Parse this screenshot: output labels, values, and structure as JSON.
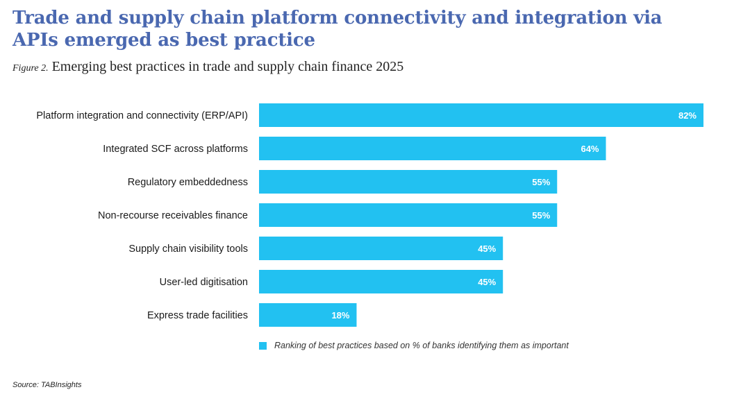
{
  "header": {
    "title": "Trade and supply chain platform connectivity and integration via APIs emerged as best practice",
    "figure_prefix": "Figure 2.",
    "figure_title": "Emerging best practices in trade and supply chain finance 2025"
  },
  "colors": {
    "title": "#4a68b0",
    "bar": "#22c1f1"
  },
  "chart_data": {
    "type": "bar",
    "orientation": "horizontal",
    "title": "Emerging best practices in trade and supply chain finance 2025",
    "categories": [
      "Platform integration and connectivity (ERP/API)",
      "Integrated SCF across platforms",
      "Regulatory embeddedness",
      "Non-recourse receivables finance",
      "Supply chain visibility tools",
      "User-led digitisation",
      "Express trade facilities"
    ],
    "series": [
      {
        "name": "Ranking of best practices based on % of banks identifying them as important",
        "values": [
          82,
          64,
          55,
          55,
          45,
          45,
          18
        ]
      }
    ],
    "value_labels": [
      "82%",
      "64%",
      "55%",
      "55%",
      "45%",
      "45%",
      "18%"
    ],
    "unit": "%",
    "xlabel": "",
    "ylabel": "",
    "xlim": [
      0,
      82
    ],
    "grid": false,
    "legend_position": "bottom"
  },
  "legend": {
    "label": "Ranking of best practices based on % of banks identifying them as important"
  },
  "footer": {
    "source": "Source: TABInsights"
  }
}
